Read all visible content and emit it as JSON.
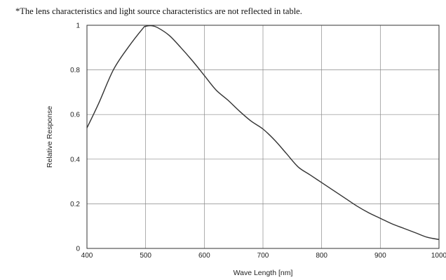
{
  "note": "*The lens characteristics and light source characteristics are not reflected in table.",
  "chart_data": {
    "type": "line",
    "title": "",
    "xlabel": "Wave Length [nm]",
    "ylabel": "Relative Response",
    "xlim": [
      400,
      1000
    ],
    "ylim": [
      0,
      1
    ],
    "xticks": [
      400,
      500,
      600,
      700,
      800,
      900,
      1000
    ],
    "xtick_labels": [
      "400",
      "500",
      "600",
      "700",
      "800",
      "900",
      "1000"
    ],
    "yticks": [
      0,
      0.2,
      0.4,
      0.6,
      0.8,
      1
    ],
    "ytick_labels": [
      "0",
      "0.2",
      "0.4",
      "0.6",
      "0.8",
      "1"
    ],
    "grid": true,
    "legend": "none",
    "line_color": "#333333",
    "series": [
      {
        "x": [
          400,
          420,
          445,
          470,
          495,
          500,
          510,
          520,
          540,
          560,
          580,
          600,
          620,
          640,
          660,
          680,
          700,
          720,
          740,
          760,
          780,
          800,
          820,
          840,
          860,
          880,
          900,
          920,
          940,
          960,
          980,
          1000
        ],
        "y": [
          0.54,
          0.65,
          0.8,
          0.9,
          0.985,
          0.995,
          0.998,
          0.99,
          0.955,
          0.9,
          0.84,
          0.775,
          0.71,
          0.665,
          0.615,
          0.57,
          0.535,
          0.485,
          0.425,
          0.365,
          0.33,
          0.295,
          0.26,
          0.225,
          0.19,
          0.16,
          0.135,
          0.11,
          0.09,
          0.07,
          0.05,
          0.04
        ]
      }
    ]
  }
}
